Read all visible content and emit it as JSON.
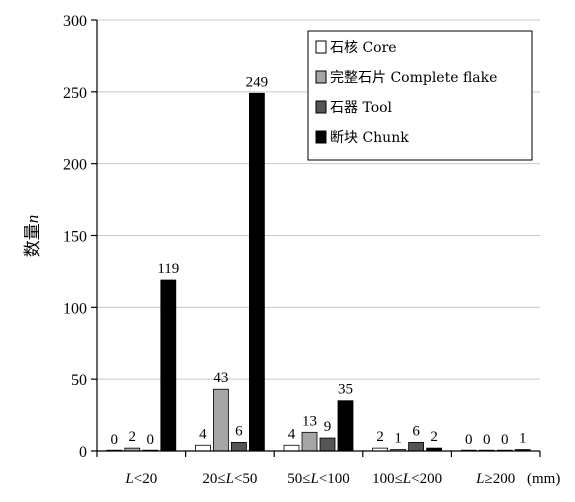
{
  "chart_data": {
    "type": "bar",
    "title": "",
    "xlabel": "",
    "ylabel_prefix": "数量",
    "ylabel_var": "n",
    "x_unit": "(mm)",
    "ylim": [
      0,
      300
    ],
    "yticks": [
      0,
      50,
      100,
      150,
      200,
      250,
      300
    ],
    "grid": true,
    "legend_position": "top-right",
    "categories": [
      {
        "parts": [
          [
            "L",
            true
          ],
          [
            "<20",
            false
          ]
        ]
      },
      {
        "parts": [
          [
            "20≤",
            false
          ],
          [
            "L",
            true
          ],
          [
            "<50",
            false
          ]
        ]
      },
      {
        "parts": [
          [
            "50≤",
            false
          ],
          [
            "L",
            true
          ],
          [
            "<100",
            false
          ]
        ]
      },
      {
        "parts": [
          [
            "100≤",
            false
          ],
          [
            "L",
            true
          ],
          [
            "<200",
            false
          ]
        ]
      },
      {
        "parts": [
          [
            "L",
            true
          ],
          [
            "≥200",
            false
          ]
        ]
      }
    ],
    "series": [
      {
        "name": "石核 Core",
        "color": "#ffffff",
        "values": [
          0,
          4,
          4,
          2,
          0
        ]
      },
      {
        "name": "完整石片 Complete flake",
        "color": "#a6a6a6",
        "values": [
          2,
          43,
          13,
          1,
          0
        ]
      },
      {
        "name": "石器 Tool",
        "color": "#555555",
        "values": [
          0,
          6,
          9,
          6,
          0
        ]
      },
      {
        "name": "断块 Chunk",
        "color": "#000000",
        "values": [
          119,
          249,
          35,
          2,
          1
        ]
      }
    ]
  }
}
